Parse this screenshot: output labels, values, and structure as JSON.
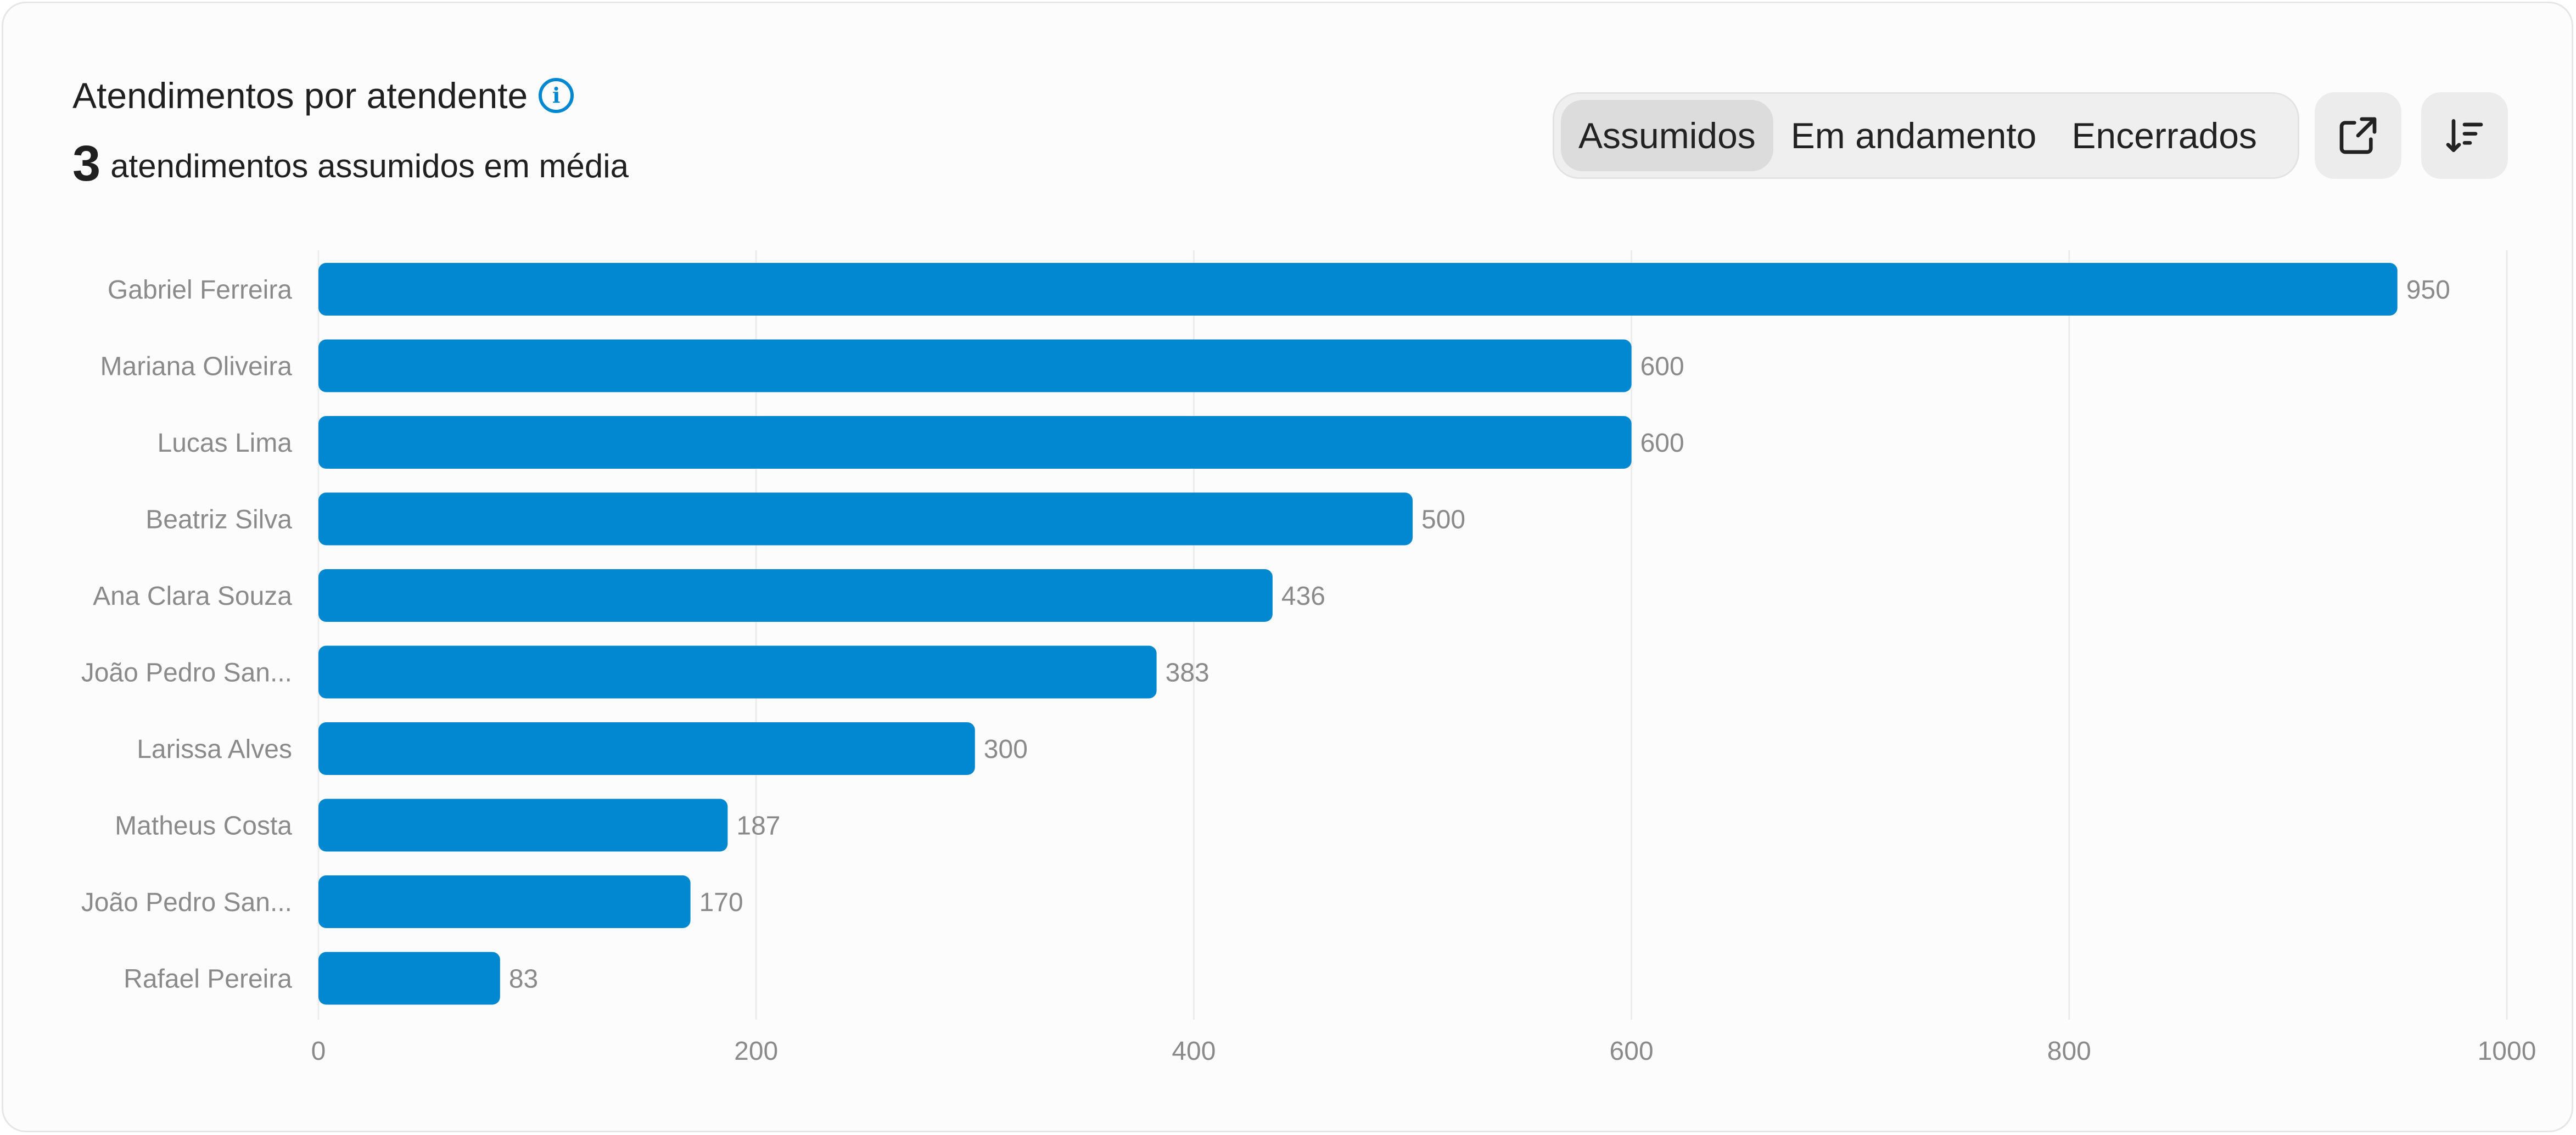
{
  "header": {
    "title": "Atendimentos por atendente",
    "info_icon": "info-icon",
    "average_value": "3",
    "average_text": "atendimentos assumidos em média"
  },
  "tabs": [
    {
      "label": "Assumidos",
      "active": true
    },
    {
      "label": "Em andamento",
      "active": false
    },
    {
      "label": "Encerrados",
      "active": false
    }
  ],
  "actions": {
    "export_icon": "external-link-icon",
    "sort_icon": "sort-descending-icon"
  },
  "colors": {
    "bar": "#0288d1",
    "accent": "#0288d1",
    "grid": "#ebebeb",
    "label": "#8a8a8a"
  },
  "chart_data": {
    "type": "bar",
    "orientation": "horizontal",
    "categories": [
      "Gabriel Ferreira",
      "Mariana Oliveira",
      "Lucas Lima",
      "Beatriz Silva",
      "Ana Clara Souza",
      "João Pedro San...",
      "Larissa Alves",
      "Matheus Costa",
      "João Pedro San...",
      "Rafael Pereira"
    ],
    "values": [
      950,
      600,
      600,
      500,
      436,
      383,
      300,
      187,
      170,
      83
    ],
    "xlim": [
      0,
      1000
    ],
    "xticks": [
      0,
      200,
      400,
      600,
      800,
      1000
    ],
    "grid": true,
    "data_labels": true
  }
}
